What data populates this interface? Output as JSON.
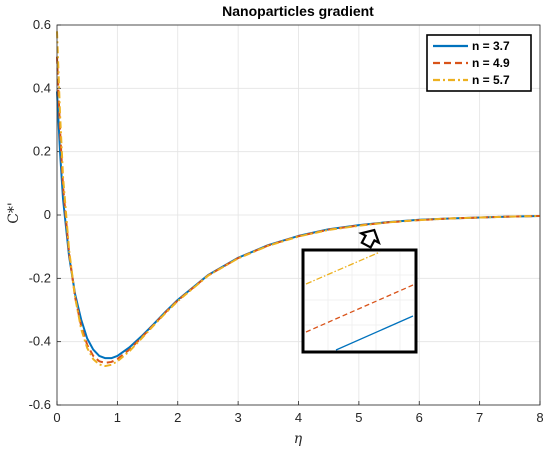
{
  "chart_data": {
    "type": "line",
    "title": "Nanoparticles gradient",
    "xlabel": "η",
    "ylabel": "C*'",
    "xlim": [
      0,
      8
    ],
    "ylim": [
      -0.6,
      0.6
    ],
    "xticks": [
      "0",
      "1",
      "2",
      "3",
      "4",
      "5",
      "6",
      "7",
      "8"
    ],
    "yticks": [
      "-0.6",
      "-0.4",
      "-0.2",
      "0",
      "0.2",
      "0.4",
      "0.6"
    ],
    "grid": true,
    "legend_position": "top-right",
    "series": [
      {
        "name": "n = 3.7",
        "color": "#0072BD",
        "dash": "solid",
        "x": [
          0,
          0.05,
          0.1,
          0.2,
          0.3,
          0.4,
          0.5,
          0.6,
          0.7,
          0.8,
          0.9,
          1.0,
          1.2,
          1.4,
          1.6,
          1.8,
          2.0,
          2.5,
          3.0,
          3.5,
          4.0,
          4.5,
          5.0,
          5.5,
          6.0,
          6.5,
          7.0,
          7.5,
          8.0
        ],
        "y": [
          0.39,
          0.2,
          0.05,
          -0.13,
          -0.25,
          -0.33,
          -0.39,
          -0.425,
          -0.445,
          -0.452,
          -0.452,
          -0.445,
          -0.418,
          -0.383,
          -0.345,
          -0.305,
          -0.268,
          -0.19,
          -0.135,
          -0.095,
          -0.066,
          -0.045,
          -0.032,
          -0.022,
          -0.015,
          -0.011,
          -0.008,
          -0.005,
          -0.003
        ]
      },
      {
        "name": "n = 4.9",
        "color": "#D95319",
        "dash": "dashed",
        "x": [
          0,
          0.05,
          0.1,
          0.2,
          0.3,
          0.4,
          0.5,
          0.6,
          0.7,
          0.8,
          0.9,
          1.0,
          1.2,
          1.4,
          1.6,
          1.8,
          2.0,
          2.5,
          3.0,
          3.5,
          4.0,
          4.5,
          5.0,
          5.5,
          6.0,
          6.5,
          7.0,
          7.5,
          8.0
        ],
        "y": [
          0.5,
          0.27,
          0.09,
          -0.12,
          -0.26,
          -0.35,
          -0.41,
          -0.445,
          -0.462,
          -0.467,
          -0.464,
          -0.455,
          -0.425,
          -0.387,
          -0.347,
          -0.307,
          -0.27,
          -0.191,
          -0.136,
          -0.096,
          -0.067,
          -0.046,
          -0.033,
          -0.023,
          -0.016,
          -0.011,
          -0.008,
          -0.005,
          -0.003
        ]
      },
      {
        "name": "n = 5.7",
        "color": "#EDB120",
        "dash": "dashdot",
        "x": [
          0,
          0.05,
          0.1,
          0.2,
          0.3,
          0.4,
          0.5,
          0.6,
          0.7,
          0.8,
          0.9,
          1.0,
          1.2,
          1.4,
          1.6,
          1.8,
          2.0,
          2.5,
          3.0,
          3.5,
          4.0,
          4.5,
          5.0,
          5.5,
          6.0,
          6.5,
          7.0,
          7.5,
          8.0
        ],
        "y": [
          0.58,
          0.32,
          0.12,
          -0.11,
          -0.26,
          -0.36,
          -0.42,
          -0.455,
          -0.472,
          -0.477,
          -0.473,
          -0.462,
          -0.43,
          -0.39,
          -0.349,
          -0.309,
          -0.272,
          -0.192,
          -0.137,
          -0.097,
          -0.068,
          -0.047,
          -0.034,
          -0.023,
          -0.016,
          -0.011,
          -0.008,
          -0.005,
          -0.003
        ]
      }
    ],
    "annotation": {
      "type": "zoom-inset",
      "arrow_target": [
        5.2,
        -0.04
      ],
      "inset_data_range": [
        -0.45,
        -0.12
      ]
    }
  }
}
